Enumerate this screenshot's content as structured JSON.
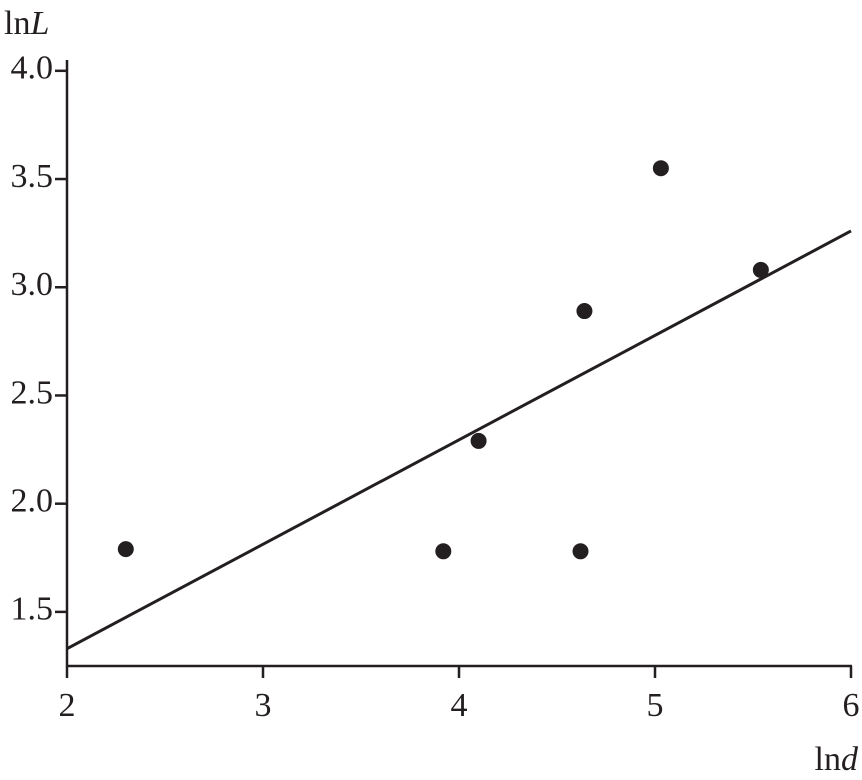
{
  "chart_data": {
    "type": "scatter",
    "y_label": {
      "prefix": "ln",
      "var": "L"
    },
    "x_label": {
      "prefix": "ln",
      "var": "d"
    },
    "x": [
      2.3,
      3.92,
      4.62,
      4.1,
      4.64,
      5.03,
      5.54
    ],
    "values": [
      1.79,
      1.78,
      1.78,
      2.29,
      2.89,
      3.55,
      3.08
    ],
    "color": "#231f20",
    "fit_line": {
      "x": [
        2,
        6
      ],
      "y": [
        1.33,
        3.26
      ]
    },
    "xlim": [
      2,
      6
    ],
    "ylim": [
      1.25,
      4.05
    ],
    "xticks": [
      2,
      3,
      4,
      5,
      6
    ],
    "yticks": [
      1.5,
      {
        "value": 2,
        "label": "2.0"
      },
      2.5,
      {
        "value": 3,
        "label": "3.0"
      },
      3.5,
      {
        "value": 4,
        "label": "4.0"
      }
    ]
  }
}
